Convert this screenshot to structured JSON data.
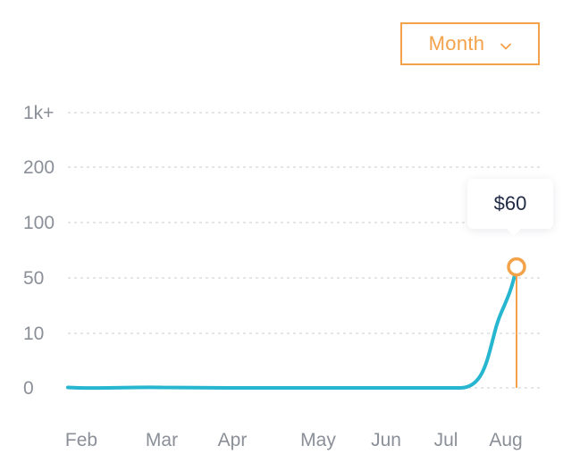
{
  "period_select": {
    "selected": "Month",
    "icon": "chevron-down-icon"
  },
  "tooltip": {
    "value": "$60"
  },
  "colors": {
    "accent": "#f4a24a",
    "line": "#26b6cf",
    "grid": "#d5d8de",
    "tick_text": "#8a8f98",
    "tooltip_text": "#1f2a44"
  },
  "chart_data": {
    "type": "line",
    "x": [
      "Feb",
      "Mar",
      "Apr",
      "May",
      "Jun",
      "Jul",
      "Aug"
    ],
    "y_ticks": [
      "1k+",
      "200",
      "100",
      "50",
      "10",
      "0"
    ],
    "series": [
      {
        "values": [
          0,
          0,
          0,
          0,
          0,
          0,
          60
        ]
      }
    ],
    "highlight": {
      "x": "Aug",
      "value": 60,
      "label": "$60"
    },
    "grid": true,
    "legend": "none",
    "title": "",
    "xlabel": "",
    "ylabel": ""
  }
}
